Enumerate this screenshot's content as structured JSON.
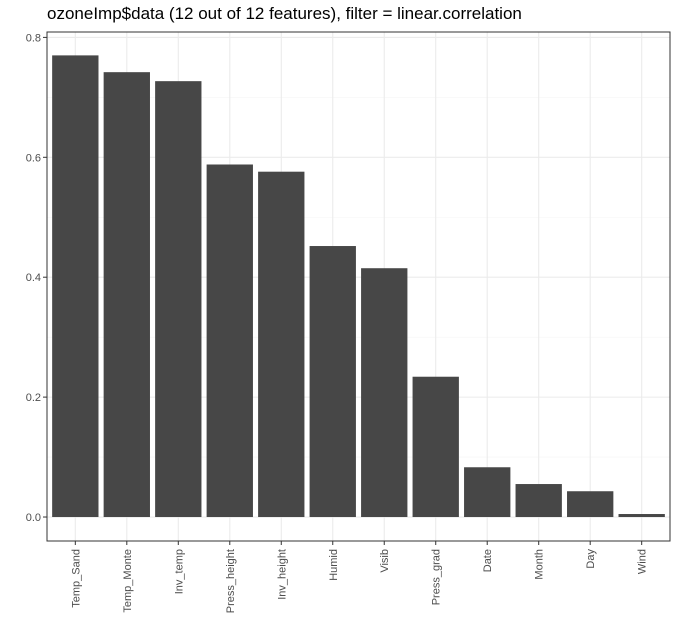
{
  "chart_data": {
    "type": "bar",
    "title": "ozoneImp$data (12 out of 12 features), filter = linear.correlation",
    "xlabel": "",
    "ylabel": "",
    "categories": [
      "Temp_Sand",
      "Temp_Monte",
      "Inv_temp",
      "Press_height",
      "Inv_height",
      "Humid",
      "Visib",
      "Press_grad",
      "Date",
      "Month",
      "Day",
      "Wind"
    ],
    "values": [
      0.77,
      0.742,
      0.727,
      0.588,
      0.576,
      0.452,
      0.415,
      0.234,
      0.083,
      0.055,
      0.043,
      0.005
    ],
    "ylim": [
      -0.04,
      0.809
    ],
    "yticks": [
      0.0,
      0.2,
      0.4,
      0.6,
      0.8
    ],
    "ytick_labels": [
      "0.0",
      "0.2",
      "0.4",
      "0.6",
      "0.8"
    ],
    "grid": true,
    "legend": "none",
    "colors": {
      "bar": "#474747",
      "grid_major": "#ebebeb",
      "grid_minor": "#f5f5f5",
      "panel_border": "#333333",
      "tick_text": "#4d4d4d",
      "background": "#ffffff"
    }
  }
}
